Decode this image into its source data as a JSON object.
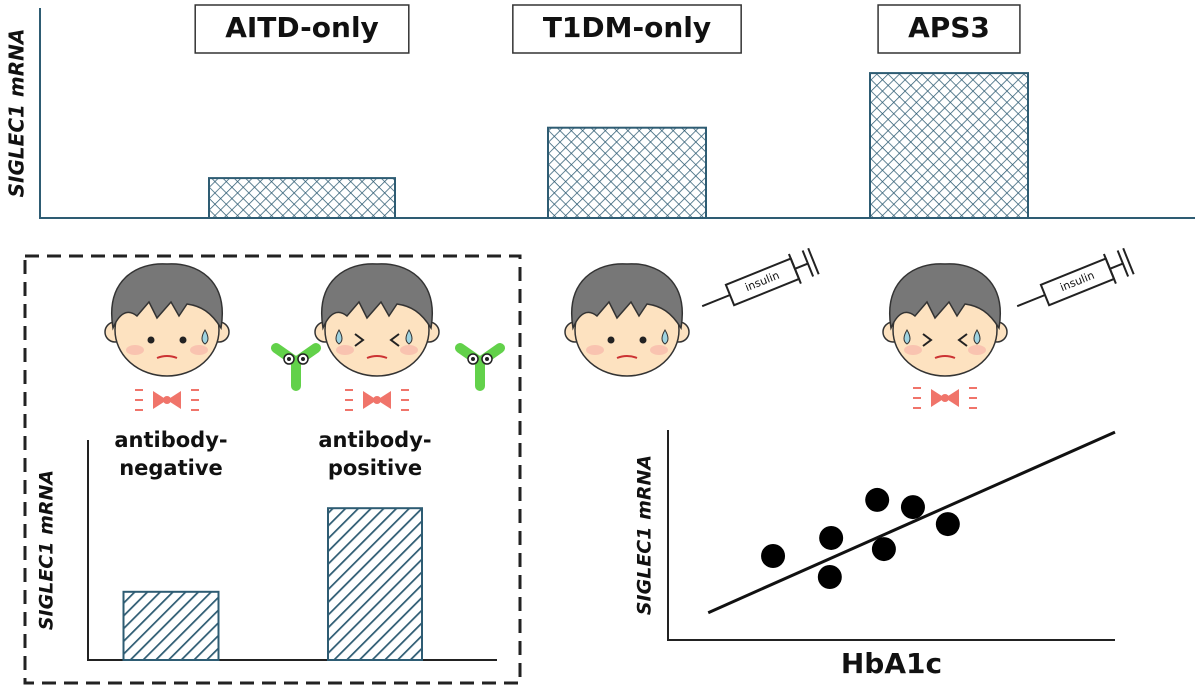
{
  "chart_data": [
    {
      "type": "bar",
      "ylabel": "SIGLEC1 mRNA",
      "categories": [
        "AITD-only",
        "T1DM-only",
        "APS3"
      ],
      "values": [
        19,
        43,
        69
      ],
      "ylim": [
        0,
        100
      ],
      "color": "#2e5c73",
      "hatch": "cross"
    },
    {
      "type": "bar",
      "ylabel": "SIGLEC1 mRNA",
      "categories": [
        "antibody-negative",
        "antibody-positive"
      ],
      "values": [
        31,
        69
      ],
      "ylim": [
        0,
        100
      ],
      "color": "#2e5c73",
      "hatch": "diagonal"
    },
    {
      "type": "scatter",
      "xlabel": "HbA1c",
      "ylabel": "SIGLEC1 mRNA",
      "x": [
        23.5,
        36.5,
        46.8,
        54.8,
        62.6,
        48.3,
        36.2
      ],
      "y": [
        40,
        48.6,
        66.7,
        63.3,
        55.2,
        43.3,
        30
      ],
      "xlim": [
        0,
        100
      ],
      "ylim": [
        0,
        100
      ],
      "color": "#000000",
      "trendline": {
        "x": [
          9,
          100
        ],
        "y": [
          13,
          99
        ]
      }
    }
  ]
}
